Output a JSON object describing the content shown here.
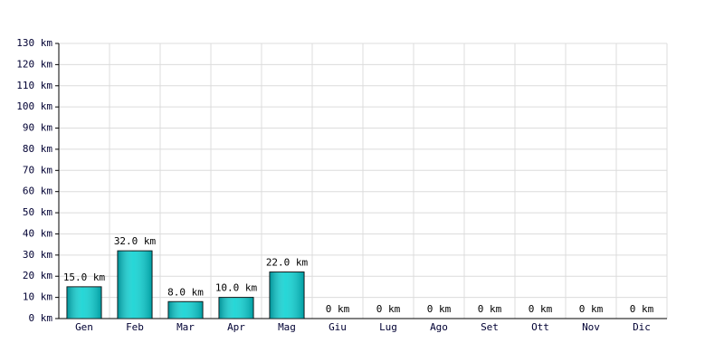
{
  "chart_data": {
    "type": "bar",
    "categories": [
      "Gen",
      "Feb",
      "Mar",
      "Apr",
      "Mag",
      "Giu",
      "Lug",
      "Ago",
      "Set",
      "Ott",
      "Nov",
      "Dic"
    ],
    "values": [
      15,
      32,
      8,
      10,
      22,
      0,
      0,
      0,
      0,
      0,
      0,
      0
    ],
    "value_labels": [
      "15.0 km",
      "32.0 km",
      "8.0 km",
      "10.0 km",
      "22.0 km",
      "0 km",
      "0 km",
      "0 km",
      "0 km",
      "0 km",
      "0 km",
      "0 km"
    ],
    "color": "#00d0d0",
    "ylim": [
      0,
      130
    ],
    "yticks": [
      {
        "value": 0,
        "label": "0 km"
      },
      {
        "value": 10,
        "label": "10 km"
      },
      {
        "value": 20,
        "label": "20 km"
      },
      {
        "value": 30,
        "label": "30 km"
      },
      {
        "value": 40,
        "label": "40 km"
      },
      {
        "value": 50,
        "label": "50 km"
      },
      {
        "value": 60,
        "label": "60 km"
      },
      {
        "value": 70,
        "label": "70 km"
      },
      {
        "value": 80,
        "label": "80 km"
      },
      {
        "value": 90,
        "label": "90 km"
      },
      {
        "value": 100,
        "label": "100 km"
      },
      {
        "value": 110,
        "label": "110 km"
      },
      {
        "value": 120,
        "label": "120 km"
      },
      {
        "value": 130,
        "label": "130 km"
      }
    ],
    "grid": true
  }
}
